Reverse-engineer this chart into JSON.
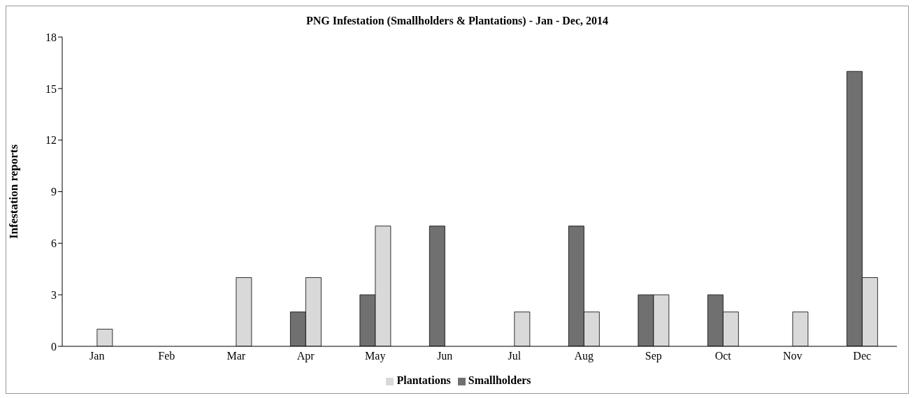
{
  "chart_data": {
    "type": "bar",
    "title": "PNG Infestation (Smallholders & Plantations) - Jan - Dec, 2014",
    "ylabel": "Infestation reports",
    "categories": [
      "Jan",
      "Feb",
      "Mar",
      "Apr",
      "May",
      "Jun",
      "Jul",
      "Aug",
      "Sep",
      "Oct",
      "Nov",
      "Dec"
    ],
    "series": [
      {
        "name": "Smallholders",
        "color": "#707070",
        "values": [
          0,
          0,
          0,
          2,
          3,
          7,
          0,
          7,
          3,
          3,
          0,
          16
        ]
      },
      {
        "name": "Plantations",
        "color": "#d9d9d9",
        "values": [
          1,
          0,
          4,
          4,
          7,
          0,
          2,
          2,
          3,
          2,
          2,
          4
        ]
      }
    ],
    "ylim": [
      0,
      18
    ],
    "yticks": [
      0,
      3,
      6,
      9,
      12,
      15,
      18
    ],
    "grid": false,
    "legend": "bottom"
  }
}
